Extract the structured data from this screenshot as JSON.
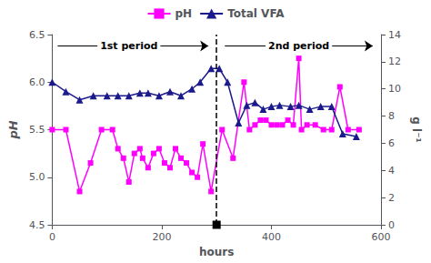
{
  "chart_data": {
    "type": "line",
    "xlabel": "hours",
    "ylabel": "pH",
    "y2label": "g l⁻¹",
    "xlim": [
      0,
      600
    ],
    "xticks": [
      0,
      200,
      400,
      600
    ],
    "ylim": [
      4.5,
      6.5
    ],
    "yticks": [
      4.5,
      {
        "value": 5.0,
        "label": "5.0"
      },
      5.5,
      {
        "value": 6.0,
        "label": "6.0"
      },
      6.5
    ],
    "y2lim": [
      0,
      14
    ],
    "y2ticks": [
      0,
      2,
      4,
      6,
      8,
      10,
      12,
      14
    ],
    "grid": false,
    "legend": "top",
    "series": [
      {
        "name": "pH",
        "color": "#FF00FF",
        "marker": "square",
        "x": [
          0,
          25,
          50,
          70,
          90,
          110,
          120,
          130,
          140,
          150,
          160,
          165,
          175,
          185,
          195,
          205,
          215,
          225,
          235,
          245,
          255,
          265,
          275,
          290,
          310,
          330,
          350,
          360,
          370,
          380,
          390,
          400,
          410,
          420,
          430,
          440,
          450,
          455,
          465,
          480,
          495,
          510,
          525,
          540,
          560
        ],
        "values": [
          5.5,
          5.5,
          4.85,
          5.15,
          5.5,
          5.5,
          5.3,
          5.2,
          4.95,
          5.25,
          5.3,
          5.2,
          5.1,
          5.25,
          5.3,
          5.15,
          5.1,
          5.3,
          5.2,
          5.15,
          5.05,
          5.0,
          5.35,
          4.85,
          5.5,
          5.2,
          6.0,
          5.5,
          5.55,
          5.6,
          5.6,
          5.55,
          5.55,
          5.55,
          5.6,
          5.55,
          6.25,
          5.5,
          5.55,
          5.55,
          5.5,
          5.5,
          5.95,
          5.5,
          5.5
        ]
      },
      {
        "name": "Total VFA",
        "color": "#1a1a8c",
        "marker": "triangle",
        "axis": "y2",
        "x": [
          0,
          25,
          50,
          75,
          100,
          120,
          140,
          160,
          175,
          195,
          215,
          235,
          255,
          270,
          290,
          305,
          320,
          340,
          355,
          370,
          385,
          400,
          415,
          435,
          450,
          470,
          490,
          510,
          530,
          555
        ],
        "values": [
          10.5,
          9.8,
          9.2,
          9.5,
          9.5,
          9.5,
          9.5,
          9.7,
          9.7,
          9.5,
          9.8,
          9.5,
          10.0,
          10.5,
          11.5,
          11.5,
          10.5,
          7.5,
          8.8,
          9.0,
          8.5,
          8.7,
          8.8,
          8.7,
          8.8,
          8.5,
          8.7,
          8.7,
          6.7,
          6.5
        ]
      }
    ],
    "annotations": [
      {
        "type": "vline",
        "x": 300,
        "line_style": "dashed",
        "color": "#000000"
      },
      {
        "type": "arrow",
        "x_start": 10,
        "x_end": 285,
        "y": 6.38,
        "color": "#000000"
      },
      {
        "type": "arrow",
        "x_start": 315,
        "x_end": 585,
        "y": 6.38,
        "color": "#000000"
      },
      {
        "type": "text",
        "text": "1st period",
        "x": 140,
        "y": 6.38,
        "color": "#000000"
      },
      {
        "type": "text",
        "text": "2nd period",
        "x": 450,
        "y": 6.38,
        "color": "#000000"
      }
    ]
  }
}
